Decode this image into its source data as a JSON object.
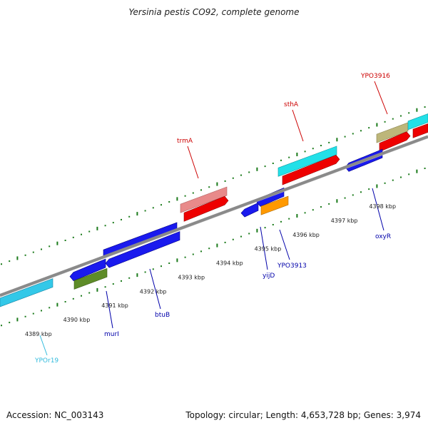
{
  "title": "Yersinia pestis CO92, complete genome",
  "footer": {
    "accession": "Accession: NC_003143",
    "meta": "Topology: circular; Length: 4,653,728 bp; Genes: 3,974"
  },
  "colors": {
    "backbone": "#8a8a8a",
    "tick": "#1a7a1a",
    "label_red": "#cc0000",
    "label_blue": "#0000aa",
    "label_cyan": "#33bbdd"
  },
  "scale_labels": [
    {
      "text": "4389 kbp",
      "kbp": 4389
    },
    {
      "text": "4390 kbp",
      "kbp": 4390
    },
    {
      "text": "4391 kbp",
      "kbp": 4391
    },
    {
      "text": "4392 kbp",
      "kbp": 4392
    },
    {
      "text": "4393 kbp",
      "kbp": 4393
    },
    {
      "text": "4394 kbp",
      "kbp": 4394
    },
    {
      "text": "4395 kbp",
      "kbp": 4395
    },
    {
      "text": "4396 kbp",
      "kbp": 4396
    },
    {
      "text": "4397 kbp",
      "kbp": 4397
    },
    {
      "text": "4398 kbp",
      "kbp": 4398
    }
  ],
  "gene_labels": [
    {
      "name": "trmA"
    },
    {
      "name": "sthA"
    },
    {
      "name": "YPO3916"
    },
    {
      "name": "YPOr19"
    },
    {
      "name": "murI"
    },
    {
      "name": "btuB"
    },
    {
      "name": "yijD"
    },
    {
      "name": "YPO3913"
    },
    {
      "name": "oxyR"
    }
  ]
}
